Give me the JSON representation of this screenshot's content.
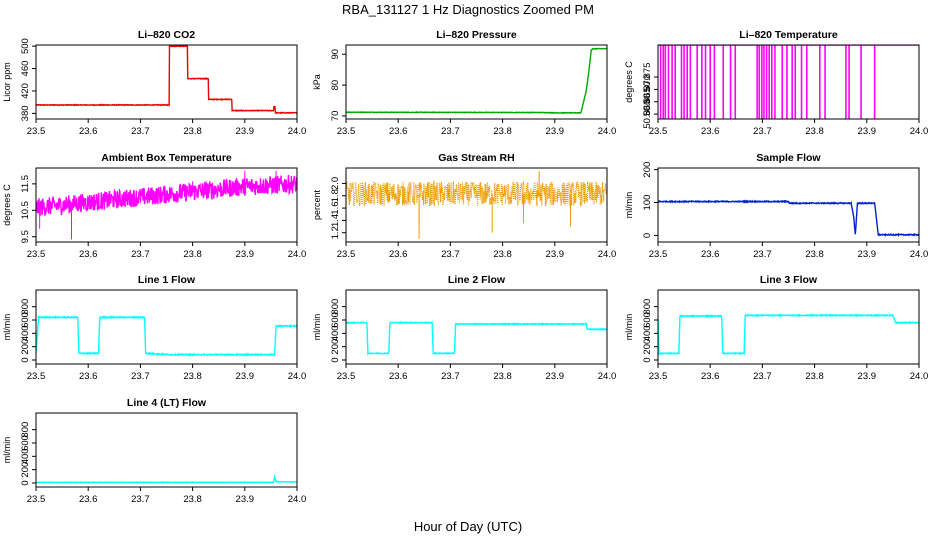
{
  "title": "RBA_131127  1 Hz Diagnostics Zoomed PM",
  "xlabel": "Hour of Day (UTC)",
  "chart_data": [
    {
      "type": "line",
      "title": "Li–820 CO2",
      "ylabel": "Licor ppm",
      "color": "#ee0000",
      "xlim": [
        23.5,
        24.0
      ],
      "ylim": [
        370,
        502
      ],
      "xticks": [
        23.5,
        23.6,
        23.7,
        23.8,
        23.9,
        24.0
      ],
      "yticks": [
        380,
        420,
        460,
        500
      ],
      "yticklabels": [
        "380",
        "420",
        "460",
        "500"
      ],
      "noise": 0.6,
      "series": [
        {
          "name": "CO2",
          "x": [
            23.5,
            23.755,
            23.755,
            23.79,
            23.79,
            23.83,
            23.83,
            23.875,
            23.875,
            23.955,
            23.955,
            23.958,
            23.958,
            24.0
          ],
          "values": [
            395,
            395,
            500,
            500,
            442,
            442,
            405,
            405,
            385,
            385,
            392,
            392,
            381,
            381
          ]
        }
      ]
    },
    {
      "type": "line",
      "title": "Li–820 Pressure",
      "ylabel": "kPa",
      "color": "#00aa00",
      "xlim": [
        23.5,
        24.0
      ],
      "ylim": [
        69,
        93
      ],
      "xticks": [
        23.5,
        23.6,
        23.7,
        23.8,
        23.9,
        24.0
      ],
      "yticks": [
        70,
        80,
        90
      ],
      "yticklabels": [
        "70",
        "80",
        "90"
      ],
      "noise": 0.08,
      "series": [
        {
          "name": "Pressure",
          "x": [
            23.5,
            23.88,
            23.9,
            23.95,
            23.96,
            23.965,
            23.97,
            23.975,
            24.0
          ],
          "values": [
            71.2,
            71.1,
            71.0,
            71.0,
            78,
            84,
            91.5,
            91.8,
            91.8
          ]
        }
      ]
    },
    {
      "type": "bar",
      "title": "Li–820 Temperature",
      "ylabel": "degrees C",
      "color": "#ff00ff",
      "xlim": [
        23.5,
        24.0
      ],
      "ylim": [
        50.858,
        50.888
      ],
      "xticks": [
        23.5,
        23.6,
        23.7,
        23.8,
        23.9,
        24.0
      ],
      "yticks": [
        50.86,
        50.865,
        50.87,
        50.875
      ],
      "yticklabels": [
        "50.860",
        "50.865",
        "50.870",
        "50.875"
      ],
      "baseline": 50.888,
      "dip_value": 50.858,
      "x": [
        23.505,
        23.51,
        23.514,
        23.52,
        23.527,
        23.533,
        23.545,
        23.55,
        23.556,
        23.562,
        23.575,
        23.584,
        23.591,
        23.6,
        23.608,
        23.625,
        23.639,
        23.648,
        23.69,
        23.694,
        23.699,
        23.703,
        23.708,
        23.713,
        23.718,
        23.724,
        23.738,
        23.747,
        23.757,
        23.763,
        23.775,
        23.785,
        23.81,
        23.82,
        23.86,
        23.866,
        23.889,
        23.915
      ]
    },
    {
      "type": "line",
      "title": "Ambient Box Temperature",
      "ylabel": "degrees C",
      "color": "#ff00ff",
      "xlim": [
        23.5,
        24.0
      ],
      "ylim": [
        9.3,
        12.1
      ],
      "xticks": [
        23.5,
        23.6,
        23.7,
        23.8,
        23.9,
        24.0
      ],
      "yticks": [
        9.5,
        10.5,
        11.5
      ],
      "yticklabels": [
        "9.5",
        "10.5",
        "11.5"
      ],
      "noise": 0.35,
      "spikes": [
        {
          "x": 23.507,
          "value": 9.8
        },
        {
          "x": 23.568,
          "value": 9.4
        },
        {
          "x": 23.585,
          "value": 11.1
        },
        {
          "x": 23.65,
          "value": 11.3
        },
        {
          "x": 23.8,
          "value": 11.6
        },
        {
          "x": 23.9,
          "value": 12.0
        },
        {
          "x": 23.96,
          "value": 12.0
        }
      ],
      "series": [
        {
          "name": "Box temp",
          "x": [
            23.5,
            23.6,
            23.7,
            23.8,
            23.9,
            24.0
          ],
          "values": [
            10.6,
            10.8,
            11.0,
            11.2,
            11.4,
            11.5
          ]
        }
      ]
    },
    {
      "type": "scatter",
      "title": "Gas Stream RH",
      "ylabel": "percent",
      "color": "#ee9a00",
      "xlim": [
        23.5,
        24.0
      ],
      "ylim": [
        1.05,
        2.25
      ],
      "xticks": [
        23.5,
        23.6,
        23.7,
        23.8,
        23.9,
        24.0
      ],
      "yticks": [
        1.2,
        1.4,
        1.6,
        1.8,
        2.0
      ],
      "yticklabels": [
        "1.2",
        "1.4",
        "1.6",
        "1.8",
        "2.0"
      ],
      "noise": 0.2,
      "spikes": [
        {
          "x": 23.64,
          "value": 1.1
        },
        {
          "x": 23.64,
          "value": 1.35
        },
        {
          "x": 23.78,
          "value": 1.2
        },
        {
          "x": 23.84,
          "value": 1.35
        },
        {
          "x": 23.87,
          "value": 2.2
        },
        {
          "x": 23.93,
          "value": 1.3
        }
      ],
      "series": [
        {
          "name": "RH",
          "x": [
            23.5,
            24.0
          ],
          "values": [
            1.83,
            1.83
          ]
        }
      ]
    },
    {
      "type": "line",
      "title": "Sample Flow",
      "ylabel": "ml/min",
      "color": "#0022cc",
      "xlim": [
        23.5,
        24.0
      ],
      "ylim": [
        -20,
        205
      ],
      "xticks": [
        23.5,
        23.6,
        23.7,
        23.8,
        23.9,
        24.0
      ],
      "yticks": [
        0,
        100,
        200
      ],
      "yticklabels": [
        "0",
        "100",
        "200"
      ],
      "noise": 1.5,
      "series": [
        {
          "name": "Sample flow",
          "x": [
            23.5,
            23.75,
            23.752,
            23.87,
            23.875,
            23.878,
            23.882,
            23.9,
            23.905,
            23.915,
            23.922,
            24.0
          ],
          "values": [
            103,
            103,
            98,
            98,
            55,
            0,
            98,
            98,
            98,
            98,
            2,
            2
          ]
        }
      ]
    },
    {
      "type": "line",
      "title": "Line 1 Flow",
      "ylabel": "ml/min",
      "color": "#00ffff",
      "xlim": [
        23.5,
        24.0
      ],
      "ylim": [
        -60,
        1050
      ],
      "xticks": [
        23.5,
        23.6,
        23.7,
        23.8,
        23.9,
        24.0
      ],
      "yticks": [
        0,
        200,
        400,
        600,
        800
      ],
      "yticklabels": [
        "0",
        "200",
        "400",
        "600",
        "800"
      ],
      "noise": 8,
      "series": [
        {
          "name": "Line 1",
          "x": [
            23.5,
            23.505,
            23.58,
            23.582,
            23.62,
            23.622,
            23.708,
            23.71,
            23.755,
            23.957,
            23.96,
            24.0
          ],
          "values": [
            100,
            640,
            640,
            100,
            100,
            640,
            640,
            100,
            80,
            80,
            510,
            510
          ]
        }
      ]
    },
    {
      "type": "line",
      "title": "Line 2 Flow",
      "ylabel": "ml/min",
      "color": "#00ffff",
      "xlim": [
        23.5,
        24.0
      ],
      "ylim": [
        -60,
        1050
      ],
      "xticks": [
        23.5,
        23.6,
        23.7,
        23.8,
        23.9,
        24.0
      ],
      "yticks": [
        0,
        200,
        400,
        600,
        800
      ],
      "yticklabels": [
        "0",
        "200",
        "400",
        "600",
        "800"
      ],
      "noise": 6,
      "series": [
        {
          "name": "Line 2",
          "x": [
            23.5,
            23.54,
            23.542,
            23.582,
            23.584,
            23.665,
            23.667,
            23.708,
            23.71,
            23.96,
            23.962,
            24.0
          ],
          "values": [
            560,
            560,
            100,
            100,
            560,
            560,
            100,
            100,
            540,
            540,
            460,
            460
          ]
        }
      ]
    },
    {
      "type": "line",
      "title": "Line 3 Flow",
      "ylabel": "ml/min",
      "color": "#00ffff",
      "xlim": [
        23.5,
        24.0
      ],
      "ylim": [
        -60,
        1050
      ],
      "xticks": [
        23.5,
        23.6,
        23.7,
        23.8,
        23.9,
        24.0
      ],
      "yticks": [
        0,
        200,
        400,
        600,
        800
      ],
      "yticklabels": [
        "0",
        "200",
        "400",
        "600",
        "800"
      ],
      "noise": 7,
      "series": [
        {
          "name": "Line 3",
          "x": [
            23.5,
            23.502,
            23.54,
            23.542,
            23.622,
            23.624,
            23.665,
            23.667,
            23.95,
            23.955,
            24.0
          ],
          "values": [
            620,
            100,
            100,
            660,
            660,
            100,
            100,
            670,
            670,
            560,
            560
          ]
        }
      ]
    },
    {
      "type": "line",
      "title": "Line 4 (LT) Flow",
      "ylabel": "ml/min",
      "color": "#00ffff",
      "xlim": [
        23.5,
        24.0
      ],
      "ylim": [
        -60,
        1050
      ],
      "xticks": [
        23.5,
        23.6,
        23.7,
        23.8,
        23.9,
        24.0
      ],
      "yticks": [
        0,
        200,
        400,
        600,
        800
      ],
      "yticklabels": [
        "0",
        "200",
        "400",
        "600",
        "800"
      ],
      "noise": 3,
      "series": [
        {
          "name": "Line 4",
          "x": [
            23.5,
            23.955,
            23.957,
            23.96,
            24.0
          ],
          "values": [
            10,
            10,
            90,
            20,
            15
          ]
        }
      ]
    }
  ]
}
